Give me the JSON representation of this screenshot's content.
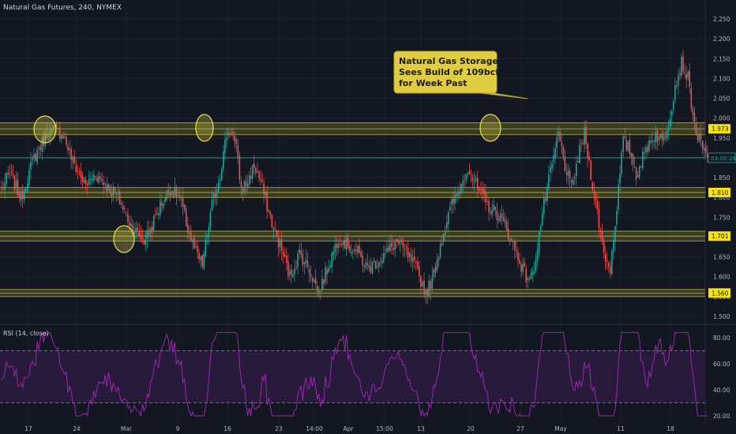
{
  "title": "Natural Gas Futures, 240, NYMEX",
  "colors": {
    "background": "#131722",
    "grid": "#1e2230",
    "up": "#26a69a",
    "down": "#ef5350",
    "zone_fill": "#6b6a1f",
    "zone_line": "#c9c34d",
    "label_bg": "#f5e20f",
    "circle": "#e8e04a",
    "rsi_line": "#9c27b0",
    "rsi_band": "#2a1b3d",
    "current_line": "#26a69a",
    "axis_text": "#b2b5be"
  },
  "annotation": {
    "lines": [
      "Natural Gas Storage",
      "Sees Build of 109bcf",
      "for Week Past"
    ]
  },
  "current_price_label": "03:00:28",
  "rsi": {
    "label": "RSI (14, close)"
  },
  "chart_data": [
    {
      "type": "candlestick",
      "title": "Natural Gas Futures, 240, NYMEX",
      "ylim": [
        1.475,
        2.275
      ],
      "y_ticks": [
        "1.500",
        "1.550",
        "1.600",
        "1.650",
        "1.700",
        "1.750",
        "1.800",
        "1.850",
        "1.900",
        "1.950",
        "2.000",
        "2.050",
        "2.100",
        "2.150",
        "2.200",
        "2.250"
      ],
      "x_ticks": [
        "17",
        "24",
        "Mar",
        "9",
        "16",
        "23",
        "14:00",
        "Apr",
        "15:00",
        "13",
        "20",
        "27",
        "May",
        "11",
        "18"
      ],
      "levels": [
        {
          "label": "1.973",
          "low": 1.958,
          "high": 1.988
        },
        {
          "label": "1.810",
          "low": 1.8,
          "high": 1.825
        },
        {
          "label": "1.701",
          "low": 1.69,
          "high": 1.715
        },
        {
          "label": "1.560",
          "low": 1.55,
          "high": 1.568
        }
      ],
      "current_price": 1.9,
      "anchors": [
        [
          0,
          1.82
        ],
        [
          5,
          1.86
        ],
        [
          12,
          1.8
        ],
        [
          20,
          1.9
        ],
        [
          28,
          1.96
        ],
        [
          33,
          1.97
        ],
        [
          38,
          1.96
        ],
        [
          44,
          1.89
        ],
        [
          52,
          1.83
        ],
        [
          58,
          1.86
        ],
        [
          65,
          1.83
        ],
        [
          72,
          1.8
        ],
        [
          80,
          1.73
        ],
        [
          88,
          1.69
        ],
        [
          92,
          1.72
        ],
        [
          98,
          1.78
        ],
        [
          104,
          1.82
        ],
        [
          110,
          1.8
        ],
        [
          115,
          1.72
        ],
        [
          120,
          1.66
        ],
        [
          124,
          1.63
        ],
        [
          130,
          1.78
        ],
        [
          135,
          1.86
        ],
        [
          139,
          1.96
        ],
        [
          142,
          1.97
        ],
        [
          145,
          1.92
        ],
        [
          148,
          1.82
        ],
        [
          152,
          1.84
        ],
        [
          156,
          1.88
        ],
        [
          160,
          1.84
        ],
        [
          164,
          1.78
        ],
        [
          168,
          1.72
        ],
        [
          172,
          1.68
        ],
        [
          178,
          1.6
        ],
        [
          184,
          1.66
        ],
        [
          190,
          1.62
        ],
        [
          196,
          1.56
        ],
        [
          202,
          1.63
        ],
        [
          208,
          1.7
        ],
        [
          214,
          1.68
        ],
        [
          220,
          1.66
        ],
        [
          226,
          1.62
        ],
        [
          232,
          1.64
        ],
        [
          238,
          1.66
        ],
        [
          244,
          1.69
        ],
        [
          250,
          1.66
        ],
        [
          256,
          1.62
        ],
        [
          262,
          1.56
        ],
        [
          266,
          1.59
        ],
        [
          272,
          1.7
        ],
        [
          278,
          1.78
        ],
        [
          284,
          1.83
        ],
        [
          288,
          1.88
        ],
        [
          294,
          1.82
        ],
        [
          300,
          1.78
        ],
        [
          306,
          1.76
        ],
        [
          312,
          1.72
        ],
        [
          318,
          1.66
        ],
        [
          324,
          1.6
        ],
        [
          328,
          1.6
        ],
        [
          334,
          1.76
        ],
        [
          340,
          1.88
        ],
        [
          344,
          1.96
        ],
        [
          348,
          1.88
        ],
        [
          352,
          1.82
        ],
        [
          356,
          1.9
        ],
        [
          360,
          1.96
        ],
        [
          364,
          1.86
        ],
        [
          368,
          1.76
        ],
        [
          372,
          1.66
        ],
        [
          376,
          1.62
        ],
        [
          380,
          1.78
        ],
        [
          384,
          1.94
        ],
        [
          388,
          1.92
        ],
        [
          392,
          1.86
        ],
        [
          396,
          1.9
        ],
        [
          400,
          1.94
        ],
        [
          404,
          1.96
        ],
        [
          408,
          1.94
        ],
        [
          412,
          1.99
        ],
        [
          416,
          2.08
        ],
        [
          420,
          2.14
        ],
        [
          424,
          2.1
        ],
        [
          428,
          1.98
        ],
        [
          432,
          1.93
        ],
        [
          436,
          1.9
        ]
      ]
    },
    {
      "type": "line",
      "title": "RSI (14, close)",
      "ylim": [
        15,
        90
      ],
      "y_ticks": [
        "20.00",
        "40.00",
        "60.00",
        "80.00"
      ],
      "levels": [
        70,
        30
      ]
    }
  ]
}
